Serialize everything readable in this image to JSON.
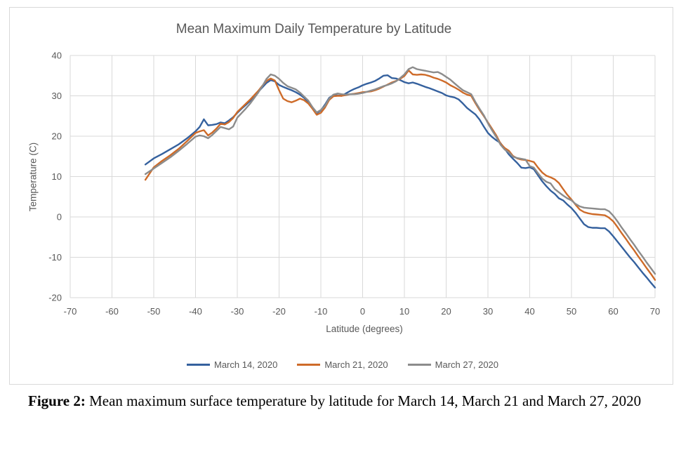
{
  "caption": {
    "label": "Figure 2:",
    "text": "Mean maximum surface temperature by latitude for March 14, March 21 and March 27, 2020"
  },
  "chart_data": {
    "type": "line",
    "title": "Mean Maximum Daily Temperature by Latitude",
    "xlabel": "Latitude (degrees)",
    "ylabel": "Temperature (C)",
    "xlim": [
      -70,
      70
    ],
    "ylim": [
      -20,
      40
    ],
    "xticks": [
      -70,
      -60,
      -50,
      -40,
      -30,
      -20,
      -10,
      0,
      10,
      20,
      30,
      40,
      50,
      60,
      70
    ],
    "yticks": [
      40,
      30,
      20,
      10,
      0,
      -10,
      -20
    ],
    "grid": true,
    "legend_position": "bottom",
    "style": {
      "background": "#FFFFFF",
      "grid_color": "#D9D9D9",
      "text_color": "#595959",
      "frame_border": "#D9D9D9",
      "caption_color": "#000000"
    },
    "x": [
      -52,
      -50,
      -48,
      -46,
      -44,
      -42,
      -40,
      -39,
      -38,
      -37,
      -36,
      -35,
      -34,
      -33,
      -32,
      -31,
      -30,
      -29,
      -28,
      -27,
      -26,
      -25,
      -24,
      -23,
      -22,
      -21,
      -20,
      -19,
      -18,
      -17,
      -16,
      -15,
      -14,
      -13,
      -12,
      -11,
      -10,
      -9,
      -8,
      -7,
      -6,
      -5,
      -4,
      -3,
      -2,
      -1,
      0,
      1,
      2,
      3,
      4,
      5,
      6,
      7,
      8,
      9,
      10,
      11,
      12,
      13,
      14,
      15,
      16,
      17,
      18,
      19,
      20,
      21,
      22,
      23,
      24,
      25,
      26,
      27,
      28,
      29,
      30,
      31,
      32,
      33,
      34,
      35,
      36,
      37,
      38,
      39,
      40,
      41,
      42,
      43,
      44,
      45,
      46,
      47,
      48,
      49,
      50,
      51,
      52,
      53,
      54,
      55,
      56,
      57,
      58,
      59,
      60,
      61,
      62,
      63,
      64,
      65,
      66,
      67,
      68,
      69,
      70
    ],
    "series": [
      {
        "name": "March 14, 2020",
        "color": "#35619E",
        "values": [
          13.0,
          14.5,
          15.6,
          16.8,
          18.0,
          19.5,
          21.2,
          22.3,
          24.2,
          22.7,
          22.8,
          23.0,
          23.4,
          23.2,
          23.9,
          24.7,
          25.8,
          26.8,
          27.7,
          28.7,
          29.8,
          31.0,
          32.1,
          33.2,
          33.9,
          33.6,
          32.7,
          32.2,
          31.8,
          31.4,
          30.9,
          30.3,
          29.5,
          28.5,
          26.9,
          25.7,
          26.4,
          27.8,
          29.5,
          30.2,
          30.1,
          30.0,
          30.6,
          31.2,
          31.7,
          32.1,
          32.6,
          33.0,
          33.3,
          33.7,
          34.3,
          35.0,
          35.1,
          34.4,
          34.3,
          33.9,
          33.4,
          33.1,
          33.3,
          33.0,
          32.6,
          32.2,
          31.9,
          31.5,
          31.1,
          30.7,
          30.1,
          29.8,
          29.6,
          29.1,
          28.1,
          27.0,
          26.2,
          25.4,
          24.1,
          22.4,
          20.8,
          19.8,
          19.0,
          18.3,
          16.9,
          15.5,
          14.4,
          13.4,
          12.2,
          12.1,
          12.3,
          11.8,
          10.3,
          8.8,
          7.6,
          6.5,
          5.7,
          4.6,
          4.1,
          3.1,
          2.2,
          1.0,
          -0.4,
          -1.8,
          -2.5,
          -2.7,
          -2.7,
          -2.8,
          -2.8,
          -3.6,
          -4.8,
          -6.1,
          -7.4,
          -8.7,
          -10.0,
          -11.2,
          -12.5,
          -13.8,
          -15.0,
          -16.3,
          -17.5
        ]
      },
      {
        "name": "March 21, 2020",
        "color": "#CE6B29",
        "values": [
          9.2,
          12.3,
          13.9,
          15.3,
          16.9,
          18.8,
          20.8,
          21.2,
          21.5,
          20.2,
          20.9,
          21.9,
          23.1,
          22.9,
          23.5,
          24.5,
          26.0,
          27.0,
          28.0,
          29.0,
          30.1,
          31.2,
          32.5,
          33.7,
          34.3,
          33.8,
          31.4,
          29.3,
          28.7,
          28.4,
          28.8,
          29.3,
          28.9,
          28.1,
          26.8,
          25.3,
          25.8,
          27.1,
          29.0,
          29.9,
          30.0,
          30.0,
          30.2,
          30.4,
          30.5,
          30.7,
          30.9,
          31.0,
          31.1,
          31.4,
          31.8,
          32.3,
          32.8,
          33.3,
          33.7,
          34.2,
          34.9,
          36.3,
          35.3,
          35.2,
          35.3,
          35.2,
          34.9,
          34.5,
          34.2,
          33.8,
          33.3,
          32.6,
          32.1,
          31.5,
          30.8,
          30.3,
          30.0,
          28.2,
          26.5,
          25.0,
          23.4,
          21.8,
          20.2,
          18.2,
          17.1,
          16.4,
          15.1,
          14.5,
          14.2,
          14.1,
          13.9,
          13.6,
          12.2,
          11.0,
          10.2,
          9.8,
          9.3,
          8.4,
          6.9,
          5.5,
          4.3,
          3.0,
          1.8,
          1.2,
          0.9,
          0.7,
          0.6,
          0.5,
          0.4,
          -0.2,
          -1.1,
          -2.5,
          -4.0,
          -5.4,
          -6.9,
          -8.3,
          -9.8,
          -11.2,
          -12.7,
          -14.1,
          -15.6
        ]
      },
      {
        "name": "March 27, 2020",
        "color": "#8C8C8C",
        "values": [
          10.6,
          12.0,
          13.4,
          14.8,
          16.4,
          18.1,
          19.9,
          20.2,
          20.0,
          19.5,
          20.3,
          21.3,
          22.3,
          22.0,
          21.7,
          22.4,
          24.6,
          25.7,
          26.8,
          28.0,
          29.4,
          30.8,
          32.4,
          34.2,
          35.3,
          35.0,
          34.2,
          33.2,
          32.4,
          32.0,
          31.6,
          30.8,
          29.8,
          28.8,
          27.2,
          25.9,
          26.5,
          27.5,
          29.3,
          30.3,
          30.6,
          30.4,
          30.3,
          30.4,
          30.4,
          30.5,
          30.7,
          31.0,
          31.3,
          31.6,
          32.0,
          32.4,
          32.7,
          33.1,
          33.6,
          34.4,
          35.3,
          36.6,
          37.1,
          36.6,
          36.4,
          36.2,
          36.0,
          35.8,
          35.9,
          35.4,
          34.7,
          34.0,
          33.1,
          32.2,
          31.4,
          30.9,
          30.4,
          28.5,
          26.8,
          25.2,
          23.2,
          21.4,
          19.8,
          17.9,
          16.7,
          16.0,
          14.9,
          14.6,
          14.4,
          14.2,
          12.6,
          12.2,
          10.8,
          9.5,
          8.7,
          8.3,
          6.9,
          6.1,
          5.3,
          4.6,
          4.1,
          3.2,
          2.6,
          2.3,
          2.2,
          2.1,
          2.0,
          1.9,
          1.9,
          1.4,
          0.3,
          -1.1,
          -2.6,
          -4.0,
          -5.5,
          -6.9,
          -8.4,
          -9.8,
          -11.3,
          -12.7,
          -14.1
        ]
      }
    ]
  }
}
